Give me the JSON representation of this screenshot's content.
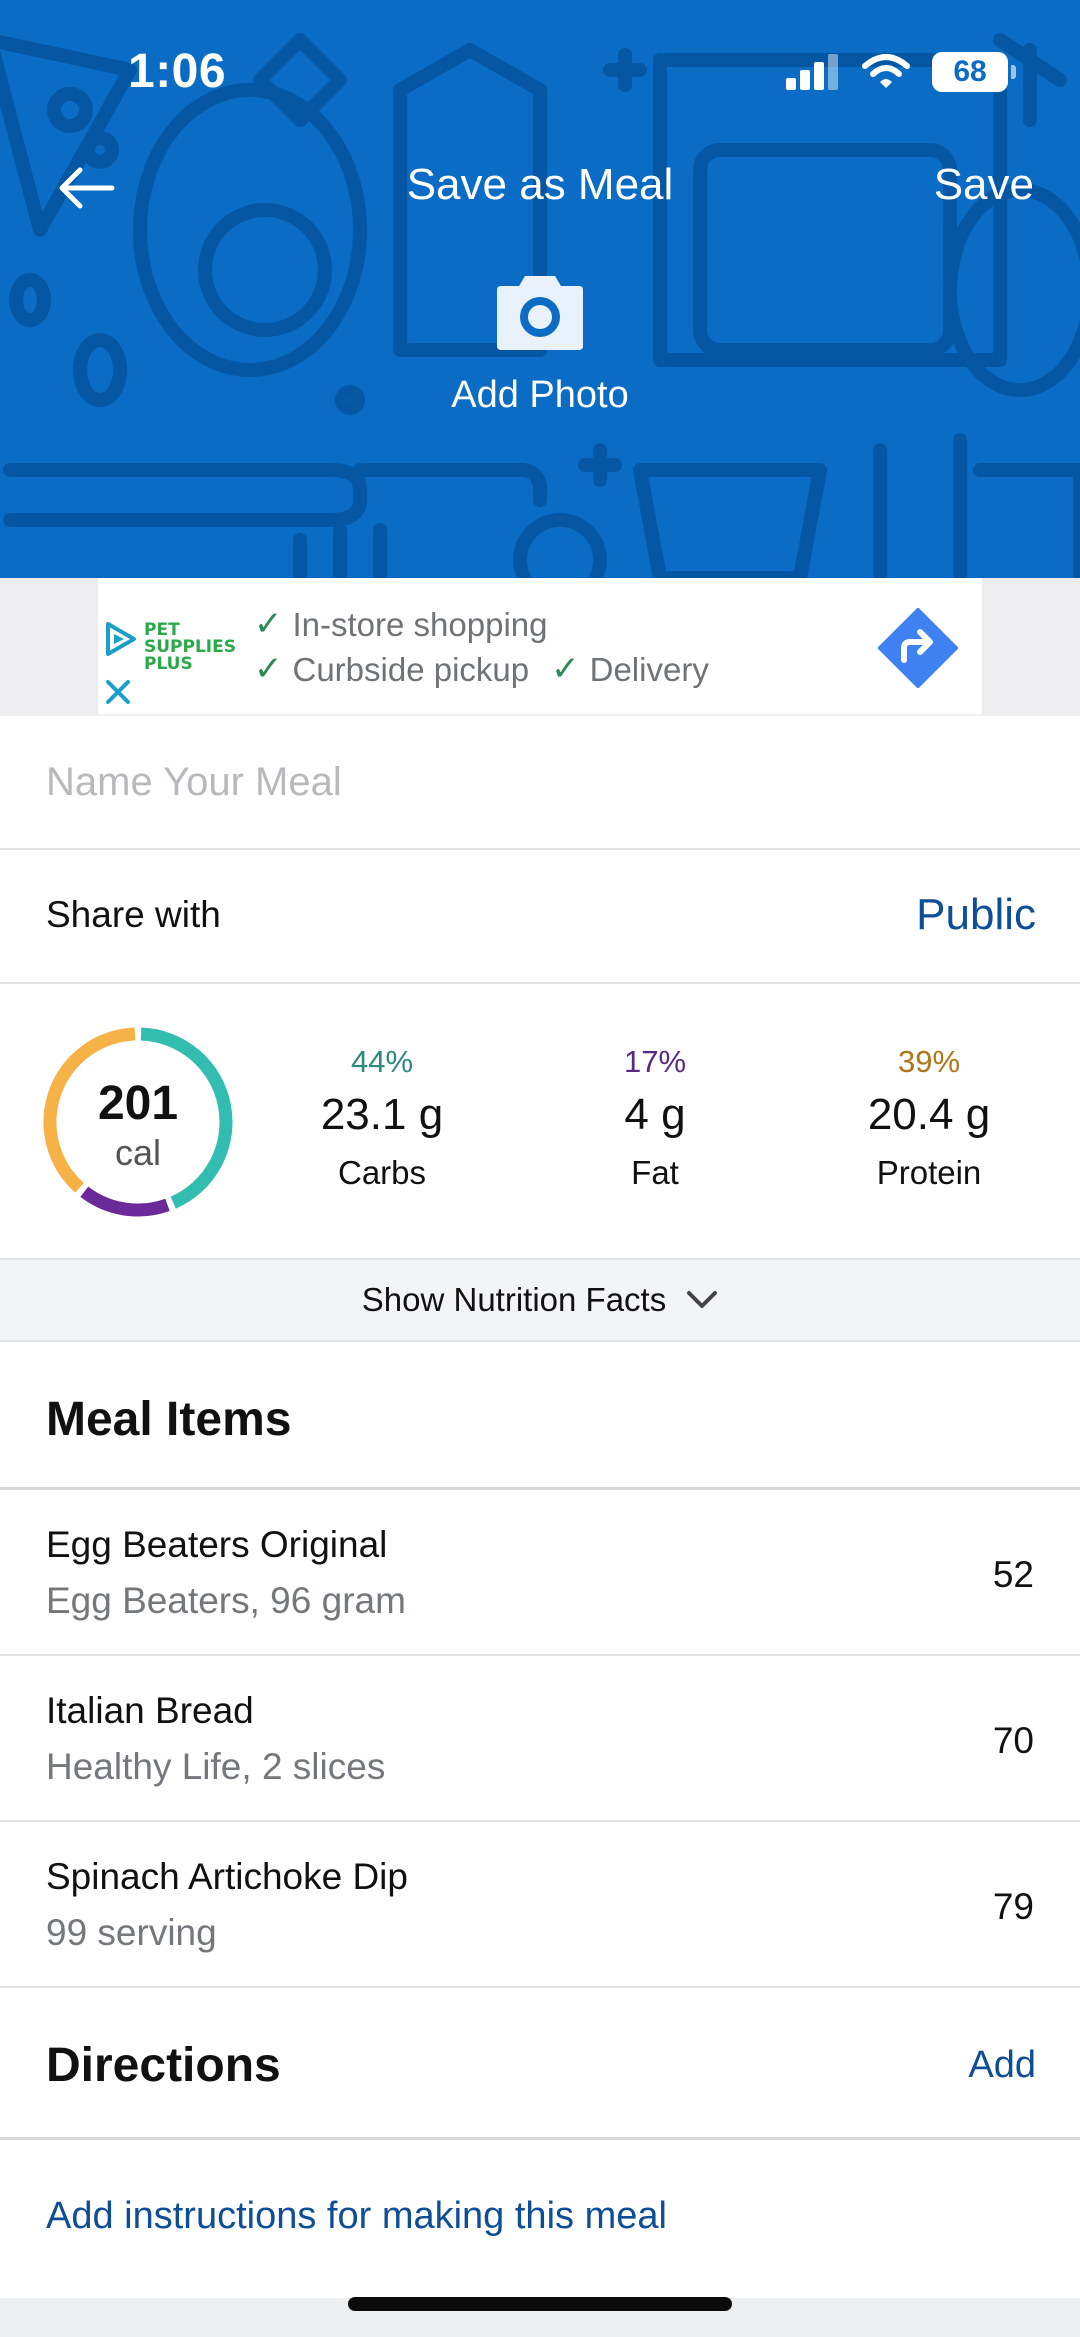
{
  "status_bar": {
    "time": "1:06",
    "battery": "68"
  },
  "nav": {
    "title": "Save as Meal",
    "save_label": "Save"
  },
  "photo": {
    "label": "Add Photo"
  },
  "ad": {
    "brand_line1": "PET",
    "brand_line2": "SUPPLIES",
    "brand_line3": "PLUS",
    "features": [
      "In-store shopping",
      "Curbside pickup",
      "Delivery"
    ]
  },
  "form": {
    "name_placeholder": "Name Your Meal",
    "share_label": "Share with",
    "share_value": "Public"
  },
  "summary": {
    "calories": "201",
    "calories_unit": "cal",
    "macros": [
      {
        "percent": "44%",
        "grams": "23.1 g",
        "label": "Carbs",
        "color": "#2a8a7c"
      },
      {
        "percent": "17%",
        "grams": "4 g",
        "label": "Fat",
        "color": "#5a2a82"
      },
      {
        "percent": "39%",
        "grams": "20.4 g",
        "label": "Protein",
        "color": "#b2741a"
      }
    ],
    "ring_colors": {
      "carbs": "#33bdb0",
      "fat": "#6b2a9a",
      "protein": "#f6b246"
    }
  },
  "nutrition_toggle": {
    "label": "Show Nutrition Facts"
  },
  "meal_items": {
    "heading": "Meal Items",
    "items": [
      {
        "name": "Egg Beaters Original",
        "detail": "Egg Beaters, 96 gram",
        "calories": "52"
      },
      {
        "name": "Italian Bread",
        "detail": "Healthy Life, 2 slices",
        "calories": "70"
      },
      {
        "name": "Spinach Artichoke Dip",
        "detail": "99 serving",
        "calories": "79"
      }
    ]
  },
  "directions": {
    "heading": "Directions",
    "add_label": "Add",
    "instructions_link": "Add instructions for making this meal"
  },
  "colors": {
    "header_blue": "#0a6cc4",
    "link_blue": "#0d4e96"
  }
}
